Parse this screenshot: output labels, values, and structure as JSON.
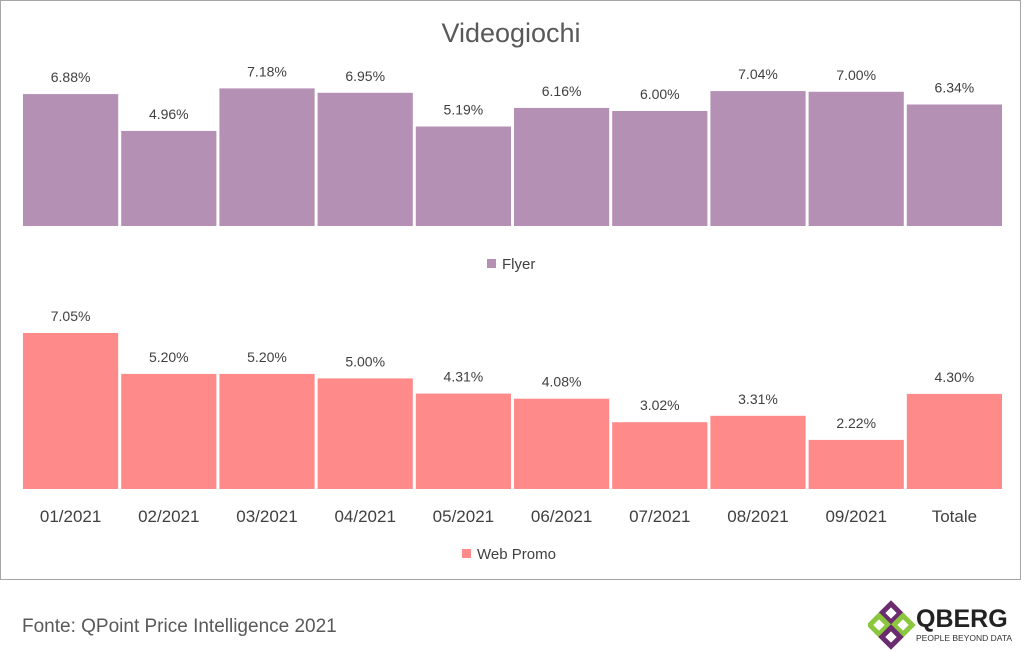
{
  "chart_data": [
    {
      "type": "bar",
      "title": "Videogiochi",
      "categories": [
        "01/2021",
        "02/2021",
        "03/2021",
        "04/2021",
        "05/2021",
        "06/2021",
        "07/2021",
        "08/2021",
        "09/2021",
        "Totale"
      ],
      "series": [
        {
          "name": "Flyer",
          "color": "#b390b4",
          "values": [
            6.88,
            4.96,
            7.18,
            6.95,
            5.19,
            6.16,
            6.0,
            7.04,
            7.0,
            6.34
          ],
          "labels": [
            "6.88%",
            "4.96%",
            "7.18%",
            "6.95%",
            "5.19%",
            "6.16%",
            "6.00%",
            "7.04%",
            "7.00%",
            "6.34%"
          ]
        }
      ],
      "ylim": [
        0,
        7.2
      ],
      "grid": false,
      "legend": "bottom",
      "xlabel": "",
      "ylabel": ""
    },
    {
      "type": "bar",
      "title": "",
      "categories": [
        "01/2021",
        "02/2021",
        "03/2021",
        "04/2021",
        "05/2021",
        "06/2021",
        "07/2021",
        "08/2021",
        "09/2021",
        "Totale"
      ],
      "series": [
        {
          "name": "Web Promo",
          "color": "#ff8a8a",
          "values": [
            7.05,
            5.2,
            5.2,
            5.0,
            4.31,
            4.08,
            3.02,
            3.31,
            2.22,
            4.3
          ],
          "labels": [
            "7.05%",
            "5.20%",
            "5.20%",
            "5.00%",
            "4.31%",
            "4.08%",
            "3.02%",
            "3.31%",
            "2.22%",
            "4.30%"
          ]
        }
      ],
      "ylim": [
        0,
        7.05
      ],
      "grid": false,
      "legend": "bottom",
      "xlabel": "",
      "ylabel": ""
    }
  ],
  "footer": {
    "source": "Fonte: QPoint Price Intelligence 2021"
  },
  "logo": {
    "name": "QBERG",
    "tagline": "PEOPLE BEYOND DATA",
    "colors": [
      "#6a2c6e",
      "#8cc63f"
    ]
  }
}
